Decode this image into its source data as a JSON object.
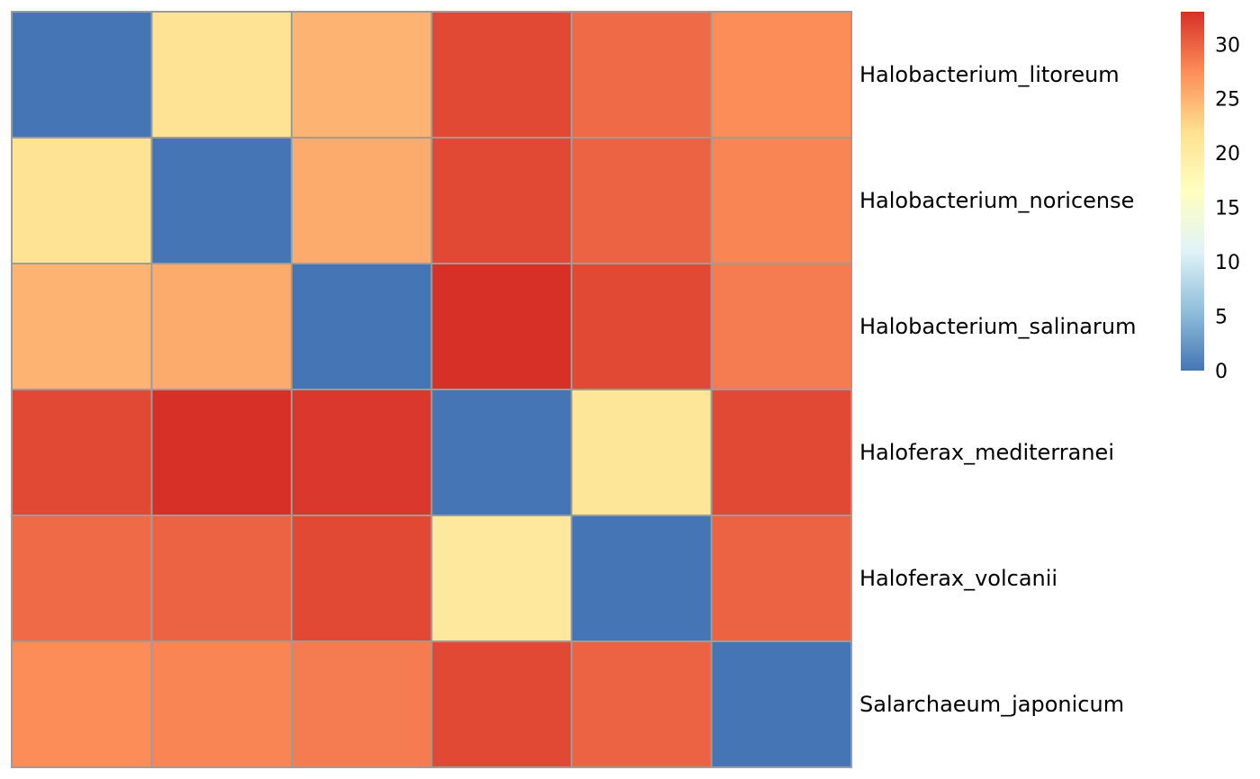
{
  "chart_data": {
    "type": "heatmap",
    "title": "",
    "xlabel": "",
    "ylabel": "",
    "row_labels": [
      "Halobacterium_litoreum",
      "Halobacterium_noricense",
      "Halobacterium_salinarum",
      "Haloferax_mediterranei",
      "Haloferax_volcanii",
      "Salarchaeum_japonicum"
    ],
    "column_labels": [],
    "values": [
      [
        0.0,
        21.5,
        25.0,
        31.5,
        29.5,
        27.5
      ],
      [
        21.5,
        0.0,
        25.5,
        31.5,
        30.0,
        28.0
      ],
      [
        25.0,
        25.5,
        0.0,
        33.0,
        31.5,
        28.5
      ],
      [
        31.5,
        33.0,
        32.5,
        0.0,
        21.0,
        31.5
      ],
      [
        29.5,
        30.0,
        31.5,
        20.5,
        0.0,
        30.0
      ],
      [
        27.5,
        28.0,
        28.5,
        31.5,
        30.0,
        0.0
      ]
    ],
    "color_scale": {
      "min": 0,
      "max": 33,
      "stops": [
        "#4575B4",
        "#91BFDB",
        "#E0F3F8",
        "#FFFFBF",
        "#FEE090",
        "#FC8D59",
        "#D73027"
      ],
      "ticks": [
        "0",
        "5",
        "10",
        "15",
        "20",
        "25",
        "30"
      ]
    },
    "cell_border_color": "#9C9C9C",
    "legend_position": "top-right",
    "grid": false
  }
}
